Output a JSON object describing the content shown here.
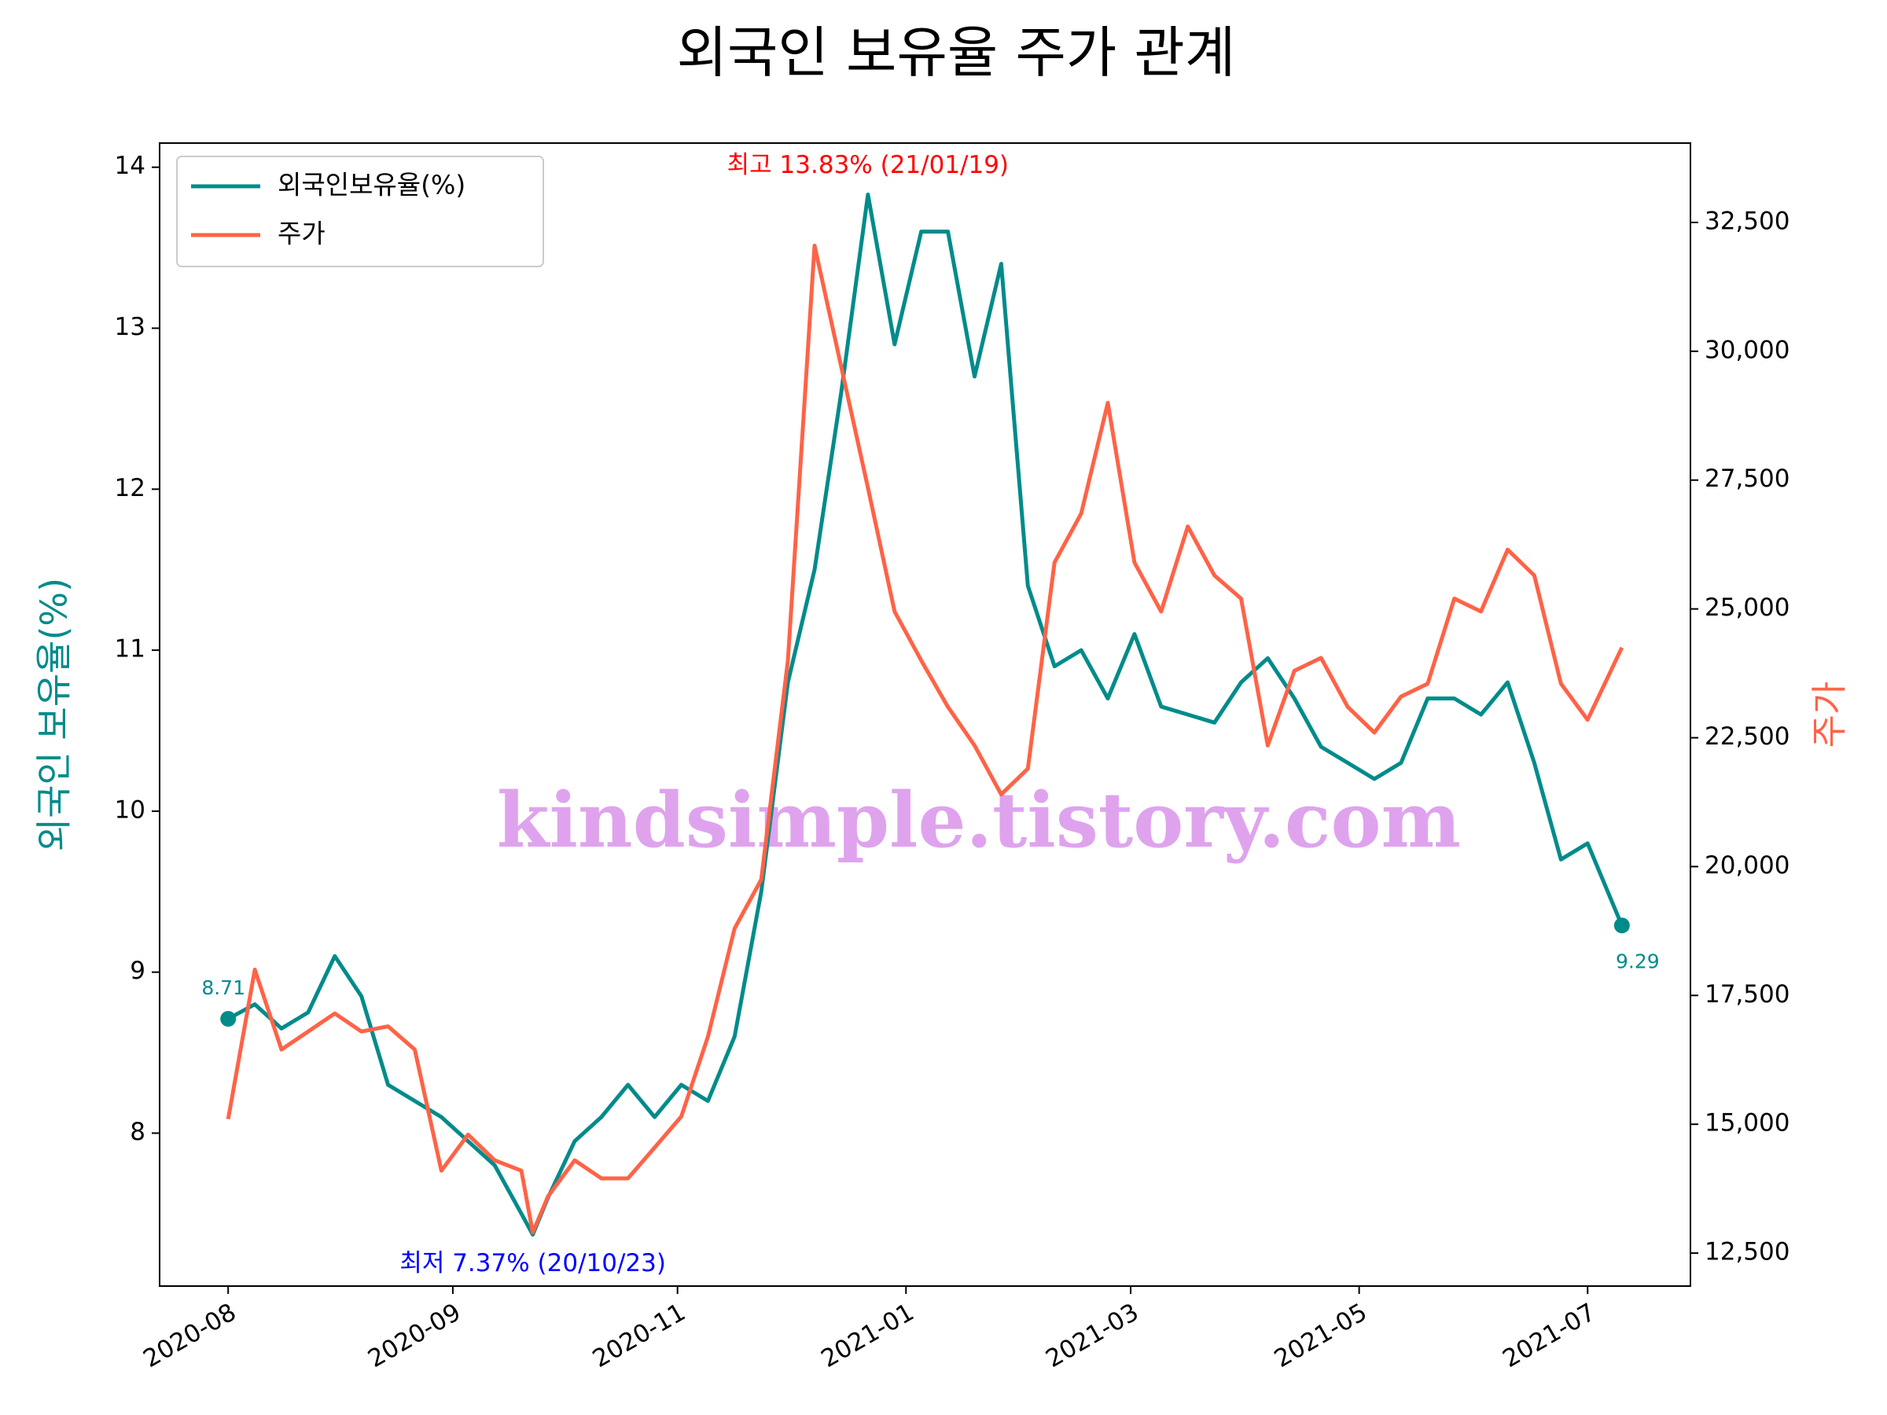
{
  "chart_data": {
    "type": "line",
    "title": "외국인 보유율 주가 관계",
    "ylabel": "외국인 보유율(%)",
    "y2label": "주가",
    "watermark": "kindsimple.tistory.com",
    "legend": "upper left",
    "grid": false,
    "x": [
      "2020-08-04",
      "2020-08-11",
      "2020-08-18",
      "2020-08-25",
      "2020-09-01",
      "2020-09-08",
      "2020-09-15",
      "2020-09-22",
      "2020-09-29",
      "2020-10-06",
      "2020-10-13",
      "2020-10-20",
      "2020-10-23",
      "2020-10-27",
      "2020-11-03",
      "2020-11-10",
      "2020-11-17",
      "2020-11-24",
      "2020-12-01",
      "2020-12-08",
      "2020-12-15",
      "2020-12-22",
      "2020-12-29",
      "2021-01-05",
      "2021-01-12",
      "2021-01-19",
      "2021-01-26",
      "2021-02-02",
      "2021-02-09",
      "2021-02-16",
      "2021-02-23",
      "2021-03-02",
      "2021-03-09",
      "2021-03-16",
      "2021-03-23",
      "2021-03-30",
      "2021-04-06",
      "2021-04-13",
      "2021-04-20",
      "2021-04-27",
      "2021-05-04",
      "2021-05-11",
      "2021-05-18",
      "2021-05-25",
      "2021-06-01",
      "2021-06-08",
      "2021-06-15",
      "2021-06-22",
      "2021-06-29",
      "2021-07-06",
      "2021-07-13",
      "2021-07-20",
      "2021-07-27",
      "2021-08-05"
    ],
    "series": [
      {
        "name": "외국인보유율(%)",
        "color": "#008b8b",
        "axis": "y",
        "values": [
          8.71,
          8.8,
          8.65,
          8.75,
          9.1,
          8.85,
          8.3,
          8.2,
          8.1,
          7.95,
          7.8,
          7.5,
          7.37,
          7.6,
          7.95,
          8.1,
          8.3,
          8.1,
          8.3,
          8.2,
          8.6,
          9.5,
          10.8,
          11.5,
          12.6,
          13.83,
          12.9,
          13.6,
          13.6,
          12.7,
          13.4,
          11.4,
          10.9,
          11.0,
          10.7,
          11.1,
          10.65,
          10.6,
          10.55,
          10.8,
          10.95,
          10.7,
          10.4,
          10.3,
          10.2,
          10.3,
          10.7,
          10.7,
          10.6,
          10.8,
          10.3,
          9.7,
          9.8,
          9.29
        ]
      },
      {
        "name": "주가",
        "color": "#ff6347",
        "axis": "y2",
        "values": [
          15100,
          18000,
          16450,
          16800,
          17150,
          16800,
          16900,
          16450,
          14100,
          14800,
          14300,
          14100,
          12900,
          13600,
          14300,
          13950,
          13950,
          14550,
          15150,
          16700,
          18800,
          19750,
          24000,
          32050,
          29700,
          27350,
          24950,
          24000,
          23100,
          22350,
          21400,
          21900,
          25900,
          26850,
          29000,
          25900,
          24950,
          26600,
          25650,
          25200,
          22350,
          23800,
          24050,
          23100,
          22600,
          23300,
          23550,
          25200,
          24950,
          26150,
          25650,
          23550,
          22850,
          24250
        ]
      }
    ],
    "annotations": [
      {
        "text": "최고 13.83% (21/01/19)",
        "color": "#ff0000"
      },
      {
        "text": "최저 7.37% (20/10/23)",
        "color": "#0000ff"
      }
    ],
    "xlim": [
      "2020-07-17",
      "2021-08-23"
    ],
    "xticks": [
      {
        "value": "2020-08-04",
        "label": "2020-08"
      },
      {
        "value": "2020-10-02",
        "label": "2020-09"
      },
      {
        "value": "2020-11-30",
        "label": "2020-11"
      },
      {
        "value": "2021-01-29",
        "label": "2021-01"
      },
      {
        "value": "2021-03-29",
        "label": "2021-03"
      },
      {
        "value": "2021-05-28",
        "label": "2021-05"
      },
      {
        "value": "2021-07-27",
        "label": "2021-07"
      }
    ],
    "ylim": [
      7.05,
      14.15
    ],
    "yticks": [
      8,
      9,
      10,
      11,
      12,
      13,
      14
    ],
    "y2lim": [
      11860,
      34040
    ],
    "y2ticks": [
      {
        "value": 12500,
        "label": "12,500"
      },
      {
        "value": 15000,
        "label": "15,000"
      },
      {
        "value": 17500,
        "label": "17,500"
      },
      {
        "value": 20000,
        "label": "20,000"
      },
      {
        "value": 22500,
        "label": "22,500"
      },
      {
        "value": 25000,
        "label": "25,000"
      },
      {
        "value": 27500,
        "label": "27,500"
      },
      {
        "value": 30000,
        "label": "30,000"
      },
      {
        "value": 32500,
        "label": "32,500"
      }
    ]
  }
}
